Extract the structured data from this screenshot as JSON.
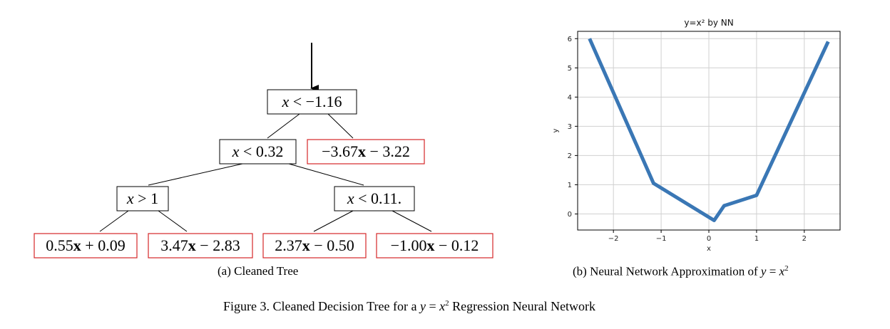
{
  "tree": {
    "root": {
      "var": "x",
      "op": " < ",
      "val": "−1.16"
    },
    "left": {
      "var": "x",
      "op": " < ",
      "val": "0.32"
    },
    "leaf_right": {
      "coef": "−3.67",
      "x": "x",
      "rest": " − 3.22"
    },
    "ll": {
      "var": "x",
      "op": " > ",
      "val": "1"
    },
    "lr": {
      "var": "x",
      "op": " < ",
      "val": "0.11."
    },
    "leaves": [
      {
        "coef": "0.55",
        "x": "x",
        "rest": " + 0.09"
      },
      {
        "coef": "3.47",
        "x": "x",
        "rest": " − 2.83"
      },
      {
        "coef": "2.37",
        "x": "x",
        "rest": " − 0.50"
      },
      {
        "coef": "−1.00",
        "x": "x",
        "rest": " − 0.12"
      }
    ]
  },
  "captions": {
    "a": "(a) Cleaned Tree",
    "b_prefix": "(b) Neural Network Approximation of ",
    "b_var_y": "y",
    "b_eq": " = ",
    "b_var_x": "x",
    "b_exp": "2",
    "fig_prefix": "Figure 3. Cleaned Decision Tree for a ",
    "fig_var_y": "y",
    "fig_eq": " = ",
    "fig_var_x": "x",
    "fig_exp": "2",
    "fig_suffix": " Regression Neural Network"
  },
  "colors": {
    "leaf_border": "#d62728",
    "line": "#3a77b5"
  },
  "chart_data": {
    "type": "line",
    "title": "y=x² by NN",
    "xlabel": "x",
    "ylabel": "y",
    "xlim": [
      -2.75,
      2.75
    ],
    "ylim": [
      -0.55,
      6.25
    ],
    "xticks": [
      -2,
      -1,
      0,
      1,
      2
    ],
    "yticks": [
      0,
      1,
      2,
      3,
      4,
      5,
      6
    ],
    "grid": true,
    "x": [
      -2.5,
      -1.16,
      0.11,
      0.32,
      1.0,
      2.5
    ],
    "y": [
      6.0,
      1.05,
      -0.22,
      0.28,
      0.64,
      5.9
    ]
  }
}
